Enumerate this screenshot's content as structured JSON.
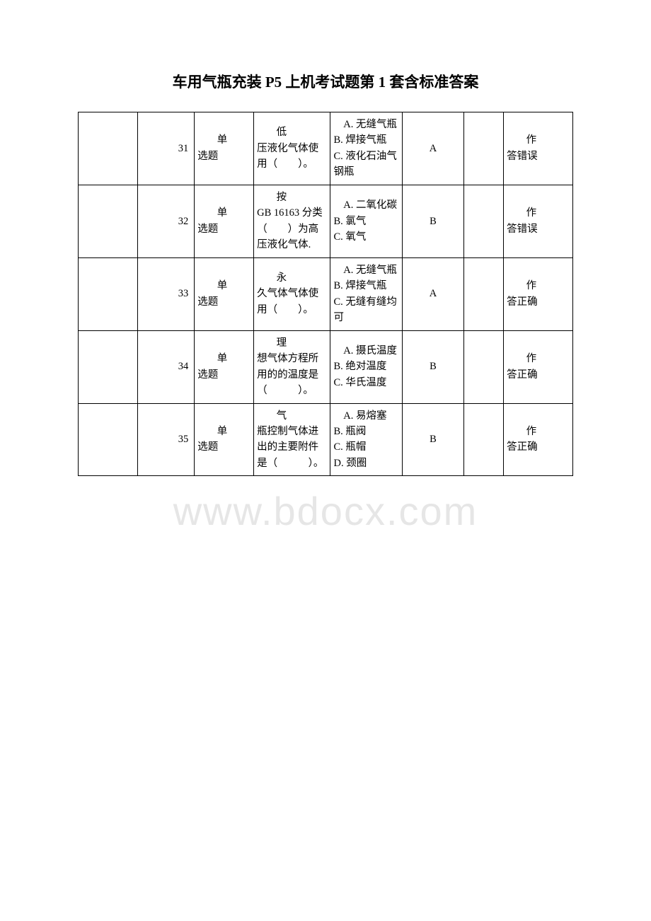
{
  "title": "车用气瓶充装 P5 上机考试题第 1 套含标准答案",
  "watermark": "www.bdocx.com",
  "columns": {
    "empty1": "",
    "num": "",
    "type": "",
    "question": "",
    "options": "",
    "answer": "",
    "empty2": "",
    "result": ""
  },
  "rows": [
    {
      "num": "31",
      "type_line1": "单",
      "type_line2": "选题",
      "question_first": "低",
      "question_rest": "压液化气体使用（　　）。",
      "options": "A. 无缝气瓶\nB. 焊接气瓶\nC. 液化石油气钢瓶",
      "answer": "A",
      "result_line1": "作",
      "result_line2": "答错误"
    },
    {
      "num": "32",
      "type_line1": "单",
      "type_line2": "选题",
      "question_first": "按",
      "question_rest": "GB 16163 分类（　　）为高压液化气体.",
      "options": "A. 二氧化碳\nB. 氯气\nC. 氧气",
      "answer": "B",
      "result_line1": "作",
      "result_line2": "答错误"
    },
    {
      "num": "33",
      "type_line1": "单",
      "type_line2": "选题",
      "question_first": "永",
      "question_rest": "久气体气体使用（　　）。",
      "options": "A. 无缝气瓶\nB. 焊接气瓶\nC. 无缝有缝均可",
      "answer": "A",
      "result_line1": "作",
      "result_line2": "答正确"
    },
    {
      "num": "34",
      "type_line1": "单",
      "type_line2": "选题",
      "question_first": "理",
      "question_rest": "想气体方程所用的的温度是（　　　）。",
      "options": "A. 摄氏温度\nB. 绝对温度\nC. 华氏温度",
      "answer": "B",
      "result_line1": "作",
      "result_line2": "答正确"
    },
    {
      "num": "35",
      "type_line1": "单",
      "type_line2": "选题",
      "question_first": "气",
      "question_rest": "瓶控制气体进出的主要附件是（　　　）。",
      "options": "A. 易熔塞\nB. 瓶阀\nC. 瓶帽\nD. 颈圈",
      "answer": "B",
      "result_line1": "作",
      "result_line2": "答正确"
    }
  ],
  "table_style": {
    "border_color": "#000000",
    "background_color": "#ffffff",
    "font_size": 14.5,
    "col_widths": [
      "12%",
      "11.5%",
      "12%",
      "15.5%",
      "14.5%",
      "12.5%",
      "8%",
      "14%"
    ]
  }
}
